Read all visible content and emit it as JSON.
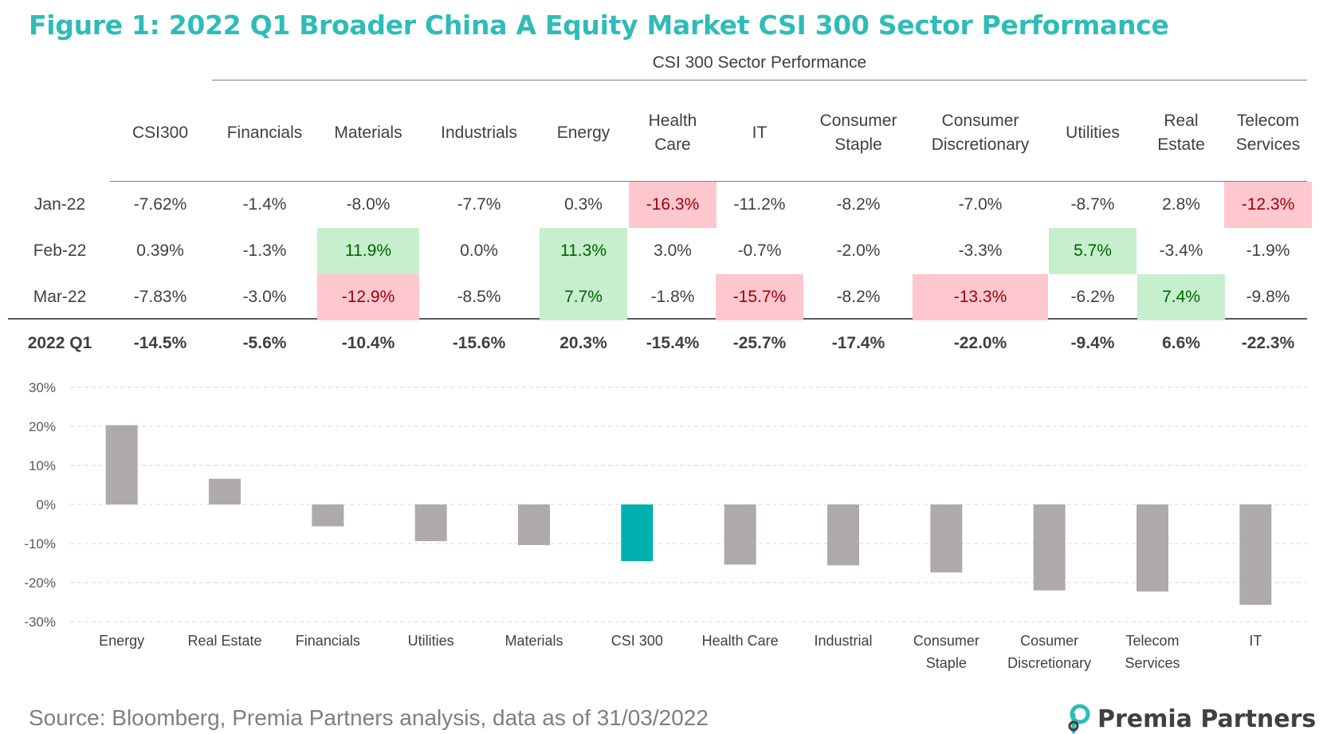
{
  "title": "Figure 1: 2022 Q1 Broader China A Equity Market CSI 300 Sector Performance",
  "table": {
    "caption": "CSI 300 Sector Performance",
    "headers": [
      "CSI300",
      "Financials",
      "Materials",
      "Industrials",
      "Energy",
      "Health Care",
      "IT",
      "Consumer Staple",
      "Consumer Discretionary",
      "Utilities",
      "Real Estate",
      "Telecom Services"
    ],
    "rows": [
      {
        "label": "Jan-22",
        "values": [
          "-7.62%",
          "-1.4%",
          "-8.0%",
          "-7.7%",
          "0.3%",
          "-16.3%",
          "-11.2%",
          "-8.2%",
          "-7.0%",
          "-8.7%",
          "2.8%",
          "-12.3%"
        ],
        "highlight": [
          "",
          "",
          "",
          "",
          "",
          "neg",
          "",
          "",
          "",
          "",
          "",
          "neg"
        ]
      },
      {
        "label": "Feb-22",
        "values": [
          "0.39%",
          "-1.3%",
          "11.9%",
          "0.0%",
          "11.3%",
          "3.0%",
          "-0.7%",
          "-2.0%",
          "-3.3%",
          "5.7%",
          "-3.4%",
          "-1.9%"
        ],
        "highlight": [
          "",
          "",
          "pos",
          "",
          "pos",
          "",
          "",
          "",
          "",
          "pos",
          "",
          ""
        ]
      },
      {
        "label": "Mar-22",
        "values": [
          "-7.83%",
          "-3.0%",
          "-12.9%",
          "-8.5%",
          "7.7%",
          "-1.8%",
          "-15.7%",
          "-8.2%",
          "-13.3%",
          "-6.2%",
          "7.4%",
          "-9.8%"
        ],
        "highlight": [
          "",
          "",
          "neg",
          "",
          "pos",
          "",
          "neg",
          "",
          "neg",
          "",
          "pos",
          ""
        ]
      }
    ],
    "total": {
      "label": "2022 Q1",
      "values": [
        "-14.5%",
        "-5.6%",
        "-10.4%",
        "-15.6%",
        "20.3%",
        "-15.4%",
        "-25.7%",
        "-17.4%",
        "-22.0%",
        "-9.4%",
        "6.6%",
        "-22.3%"
      ]
    }
  },
  "chart_data": {
    "type": "bar",
    "categories": [
      "Energy",
      "Real Estate",
      "Financials",
      "Utilities",
      "Materials",
      "CSI 300",
      "Health Care",
      "Industrial",
      "Consumer Staple",
      "Cosumer Discretionary",
      "Telecom Services",
      "IT"
    ],
    "values": [
      20.3,
      6.6,
      -5.6,
      -9.4,
      -10.4,
      -14.5,
      -15.4,
      -15.6,
      -17.4,
      -22.0,
      -22.3,
      -25.7
    ],
    "ylim": [
      -30,
      30
    ],
    "yticks": [
      30,
      20,
      10,
      0,
      -10,
      -20,
      -30
    ],
    "ytick_labels": [
      "30%",
      "20%",
      "10%",
      "0%",
      "-10%",
      "-20%",
      "-30%"
    ],
    "grid": true,
    "colors": {
      "default": "#aeaaaa",
      "highlight": "#00b0b0",
      "highlight_category": "CSI 300"
    }
  },
  "source": "Source: Bloomberg, Premia Partners analysis, data as of 31/03/2022",
  "logo": {
    "text": "Premia Partners",
    "icon": "premia-logo-icon",
    "color": "#2fbcb8"
  }
}
